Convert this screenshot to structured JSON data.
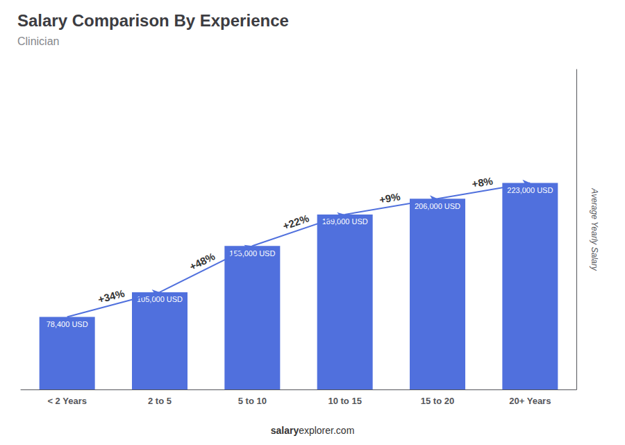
{
  "chart_data": {
    "type": "bar",
    "title": "Salary Comparison By Experience",
    "subtitle": "Clinician",
    "categories": [
      "< 2 Years",
      "2 to 5",
      "5 to 10",
      "10 to 15",
      "15 to 20",
      "20+ Years"
    ],
    "values": [
      78400,
      105000,
      155000,
      189000,
      206000,
      223000
    ],
    "value_labels": [
      "78,400 USD",
      "105,000 USD",
      "155,000 USD",
      "189,000 USD",
      "206,000 USD",
      "223,000 USD"
    ],
    "data_labels": true,
    "annotations": [
      "+34%",
      "+48%",
      "+22%",
      "+9%",
      "+8%"
    ],
    "ylabel": "Average Yearly Salary",
    "footer": [
      "salary",
      "explorer.com"
    ],
    "ylim": [
      0,
      345650
    ],
    "tick_labels": "x",
    "grid": false
  }
}
